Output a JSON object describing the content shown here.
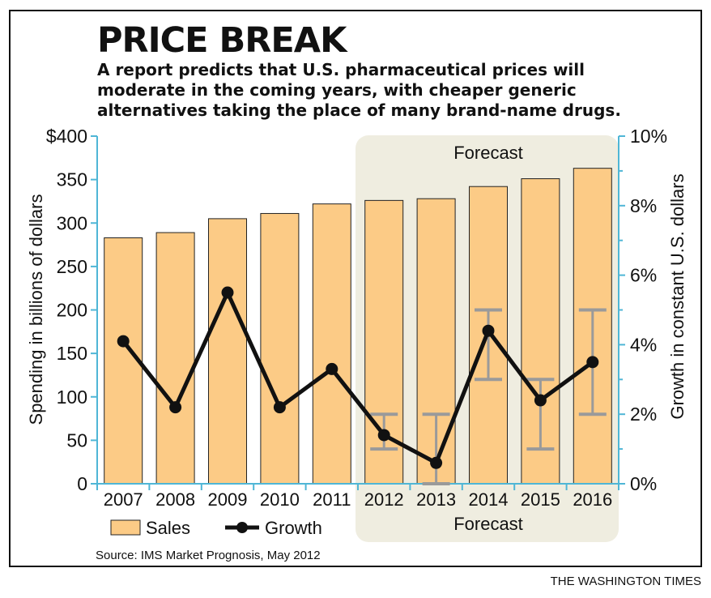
{
  "header": {
    "title": "PRICE BREAK",
    "subtitle": "A report predicts that U.S. pharmaceutical prices will moderate in the coming years, with cheaper generic alternatives taking the place of many brand-name drugs."
  },
  "forecast_label": "Forecast",
  "legend": {
    "sales": "Sales",
    "growth": "Growth"
  },
  "source": "Source: IMS Market Prognosis, May 2012",
  "credit": "THE WASHINGTON TIMES",
  "colors": {
    "bar": "#FCCB86",
    "bar_stroke": "#222222",
    "line": "#111111",
    "axis": "#4FB6D6",
    "forecast_bg": "#EFEDE0",
    "error_bar": "#9A9A9A"
  },
  "chart_data": {
    "type": "bar",
    "categories": [
      "2007",
      "2008",
      "2009",
      "2010",
      "2011",
      "2012",
      "2013",
      "2014",
      "2015",
      "2016"
    ],
    "series": [
      {
        "name": "Sales",
        "type": "bar",
        "axis": "left",
        "values": [
          283,
          289,
          305,
          311,
          322,
          326,
          328,
          342,
          351,
          363
        ]
      },
      {
        "name": "Growth",
        "type": "line",
        "axis": "right",
        "values": [
          4.1,
          2.2,
          5.5,
          2.2,
          3.3,
          1.4,
          0.6,
          4.4,
          2.4,
          3.5
        ]
      }
    ],
    "growth_range": [
      null,
      null,
      null,
      null,
      null,
      [
        1.0,
        2.0
      ],
      [
        0.0,
        2.0
      ],
      [
        3.0,
        5.0
      ],
      [
        1.0,
        3.0
      ],
      [
        2.0,
        5.0
      ]
    ],
    "forecast_categories": [
      "2012",
      "2013",
      "2014",
      "2015",
      "2016"
    ],
    "ylabel": "Spending in billions of dollars",
    "y2label": "Growth in constant U.S. dollars",
    "ylim": [
      0,
      400
    ],
    "y2lim": [
      0,
      10
    ],
    "yticks": [
      "0",
      "50",
      "100",
      "150",
      "200",
      "250",
      "300",
      "350",
      "$400"
    ],
    "y2ticks": [
      "0%",
      "2%",
      "4%",
      "6%",
      "8%",
      "10%"
    ],
    "legend_position": "bottom-left"
  }
}
